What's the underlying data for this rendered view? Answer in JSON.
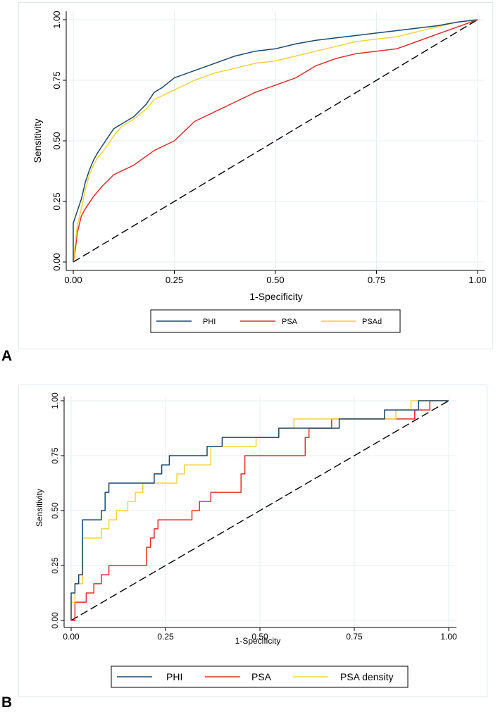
{
  "panels": [
    {
      "label": "A",
      "chart_data": {
        "type": "line",
        "title": "",
        "xlabel": "1-Specificity",
        "ylabel": "Sensitivity",
        "xlim": [
          0,
          1
        ],
        "ylim": [
          0,
          1
        ],
        "xticks": [
          "0.00",
          "0.25",
          "0.50",
          "0.75",
          "1.00"
        ],
        "yticks": [
          "0.00",
          "0.25",
          "0.50",
          "0.75",
          "1.00"
        ],
        "grid": true,
        "legend_position": "bottom",
        "reference_line": "dashed diagonal",
        "series": [
          {
            "name": "PHI",
            "color": "#1a476f",
            "x": [
              0,
              0,
              0.01,
              0.02,
              0.03,
              0.04,
              0.05,
              0.06,
              0.08,
              0.1,
              0.12,
              0.15,
              0.18,
              0.2,
              0.22,
              0.25,
              0.3,
              0.35,
              0.4,
              0.45,
              0.5,
              0.55,
              0.6,
              0.65,
              0.7,
              0.75,
              0.8,
              0.85,
              0.9,
              0.95,
              1.0
            ],
            "y": [
              0,
              0.16,
              0.21,
              0.26,
              0.33,
              0.38,
              0.42,
              0.45,
              0.5,
              0.55,
              0.57,
              0.6,
              0.65,
              0.7,
              0.72,
              0.76,
              0.79,
              0.82,
              0.85,
              0.87,
              0.88,
              0.9,
              0.915,
              0.925,
              0.935,
              0.945,
              0.955,
              0.965,
              0.975,
              0.99,
              1.0
            ]
          },
          {
            "name": "PSA",
            "color": "#e32d2d",
            "x": [
              0,
              0.005,
              0.01,
              0.02,
              0.03,
              0.05,
              0.07,
              0.1,
              0.15,
              0.2,
              0.25,
              0.3,
              0.35,
              0.4,
              0.45,
              0.5,
              0.55,
              0.6,
              0.65,
              0.7,
              0.75,
              0.8,
              0.85,
              0.9,
              0.95,
              1.0
            ],
            "y": [
              0,
              0.05,
              0.12,
              0.19,
              0.22,
              0.27,
              0.31,
              0.36,
              0.4,
              0.46,
              0.5,
              0.58,
              0.62,
              0.66,
              0.7,
              0.73,
              0.76,
              0.81,
              0.84,
              0.86,
              0.87,
              0.88,
              0.91,
              0.94,
              0.97,
              1.0
            ]
          },
          {
            "name": "PSAd",
            "color": "#f2d33c",
            "x": [
              0,
              0.005,
              0.01,
              0.02,
              0.03,
              0.04,
              0.05,
              0.06,
              0.08,
              0.1,
              0.12,
              0.15,
              0.18,
              0.2,
              0.25,
              0.3,
              0.35,
              0.4,
              0.45,
              0.5,
              0.55,
              0.6,
              0.65,
              0.7,
              0.75,
              0.8,
              0.85,
              0.9,
              0.95,
              1.0
            ],
            "y": [
              0,
              0.08,
              0.15,
              0.22,
              0.3,
              0.36,
              0.4,
              0.43,
              0.47,
              0.52,
              0.56,
              0.59,
              0.63,
              0.67,
              0.71,
              0.75,
              0.78,
              0.8,
              0.82,
              0.83,
              0.85,
              0.87,
              0.89,
              0.91,
              0.92,
              0.93,
              0.95,
              0.97,
              0.99,
              1.0
            ]
          }
        ]
      }
    },
    {
      "label": "B",
      "chart_data": {
        "type": "line",
        "title": "",
        "xlabel": "1-Specificity",
        "ylabel": "Sensitivity",
        "xlim": [
          0,
          1
        ],
        "ylim": [
          0,
          1
        ],
        "xticks": [
          "0.00",
          "0.25",
          "0.50",
          "0.75",
          "1.00"
        ],
        "yticks": [
          "0.00",
          "0.25",
          "0.50",
          "0.75",
          "1.00"
        ],
        "grid": true,
        "legend_position": "bottom",
        "reference_line": "dashed diagonal",
        "series": [
          {
            "name": "PHI",
            "color": "#1a476f",
            "x": [
              0,
              0,
              0.01,
              0.01,
              0.02,
              0.02,
              0.03,
              0.03,
              0.08,
              0.08,
              0.09,
              0.09,
              0.1,
              0.1,
              0.22,
              0.22,
              0.24,
              0.24,
              0.26,
              0.26,
              0.28,
              0.28,
              0.36,
              0.36,
              0.4,
              0.4,
              0.55,
              0.55,
              0.57,
              0.57,
              0.71,
              0.71,
              0.83,
              0.83,
              0.92,
              0.92,
              1.0
            ],
            "y": [
              0,
              0.125,
              0.125,
              0.167,
              0.167,
              0.208,
              0.208,
              0.458,
              0.458,
              0.5,
              0.5,
              0.583,
              0.583,
              0.625,
              0.625,
              0.667,
              0.667,
              0.708,
              0.708,
              0.75,
              0.75,
              0.75,
              0.75,
              0.792,
              0.792,
              0.833,
              0.833,
              0.875,
              0.875,
              0.875,
              0.875,
              0.917,
              0.917,
              0.958,
              0.958,
              1.0,
              1.0
            ]
          },
          {
            "name": "PSA",
            "color": "#e32d2d",
            "x": [
              0,
              0.01,
              0.01,
              0.04,
              0.04,
              0.06,
              0.06,
              0.08,
              0.08,
              0.1,
              0.1,
              0.12,
              0.12,
              0.2,
              0.2,
              0.21,
              0.21,
              0.22,
              0.22,
              0.23,
              0.23,
              0.32,
              0.32,
              0.34,
              0.34,
              0.37,
              0.37,
              0.45,
              0.45,
              0.46,
              0.46,
              0.62,
              0.62,
              0.63,
              0.63,
              0.69,
              0.69,
              0.91,
              0.91,
              0.95,
              0.95,
              1.0
            ],
            "y": [
              0,
              0,
              0.083,
              0.083,
              0.125,
              0.125,
              0.167,
              0.167,
              0.208,
              0.208,
              0.25,
              0.25,
              0.25,
              0.25,
              0.333,
              0.333,
              0.375,
              0.375,
              0.417,
              0.417,
              0.458,
              0.458,
              0.5,
              0.5,
              0.542,
              0.542,
              0.583,
              0.583,
              0.667,
              0.667,
              0.75,
              0.75,
              0.833,
              0.833,
              0.875,
              0.875,
              0.917,
              0.917,
              0.958,
              0.958,
              1.0,
              1.0
            ]
          },
          {
            "name": "PSA density",
            "color": "#f2d33c",
            "x": [
              0,
              0,
              0.01,
              0.01,
              0.03,
              0.03,
              0.08,
              0.08,
              0.1,
              0.1,
              0.12,
              0.12,
              0.15,
              0.15,
              0.17,
              0.17,
              0.19,
              0.19,
              0.2,
              0.2,
              0.28,
              0.28,
              0.3,
              0.3,
              0.37,
              0.37,
              0.49,
              0.49,
              0.55,
              0.55,
              0.59,
              0.59,
              0.86,
              0.86,
              0.9,
              0.9,
              1.0
            ],
            "y": [
              0,
              0.083,
              0.083,
              0.167,
              0.167,
              0.375,
              0.375,
              0.417,
              0.417,
              0.458,
              0.458,
              0.5,
              0.5,
              0.542,
              0.542,
              0.583,
              0.583,
              0.625,
              0.625,
              0.625,
              0.625,
              0.667,
              0.667,
              0.708,
              0.708,
              0.792,
              0.792,
              0.833,
              0.833,
              0.875,
              0.875,
              0.917,
              0.917,
              0.958,
              0.958,
              1.0,
              1.0
            ]
          }
        ]
      }
    }
  ]
}
